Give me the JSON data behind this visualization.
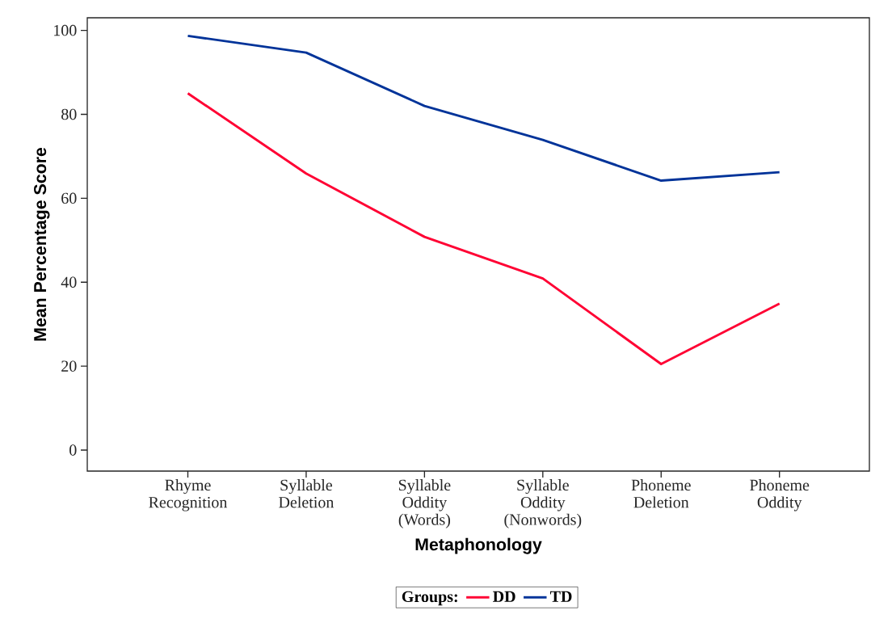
{
  "chart_data": {
    "type": "line",
    "xlabel": "Metaphonology",
    "ylabel": "Mean Percentage Score",
    "categories": [
      "Rhyme Recognition",
      "Syllable Deletion",
      "Syllable Oddity (Words)",
      "Syllable Oddity (Nonwords)",
      "Phoneme Deletion",
      "Phoneme Oddity"
    ],
    "series": [
      {
        "name": "DD",
        "color": "#ff0033",
        "values": [
          85.0,
          65.9,
          50.8,
          40.9,
          20.5,
          34.9
        ]
      },
      {
        "name": "TD",
        "color": "#003399",
        "values": [
          98.7,
          94.7,
          82.0,
          73.9,
          64.2,
          66.2
        ]
      }
    ],
    "ylim": [
      -5,
      103
    ],
    "yticks": [
      0,
      20,
      40,
      60,
      80,
      100
    ],
    "legend": "bottom",
    "legend_title": "Groups:",
    "marker": "none",
    "line_style": "solid",
    "grid": false
  }
}
